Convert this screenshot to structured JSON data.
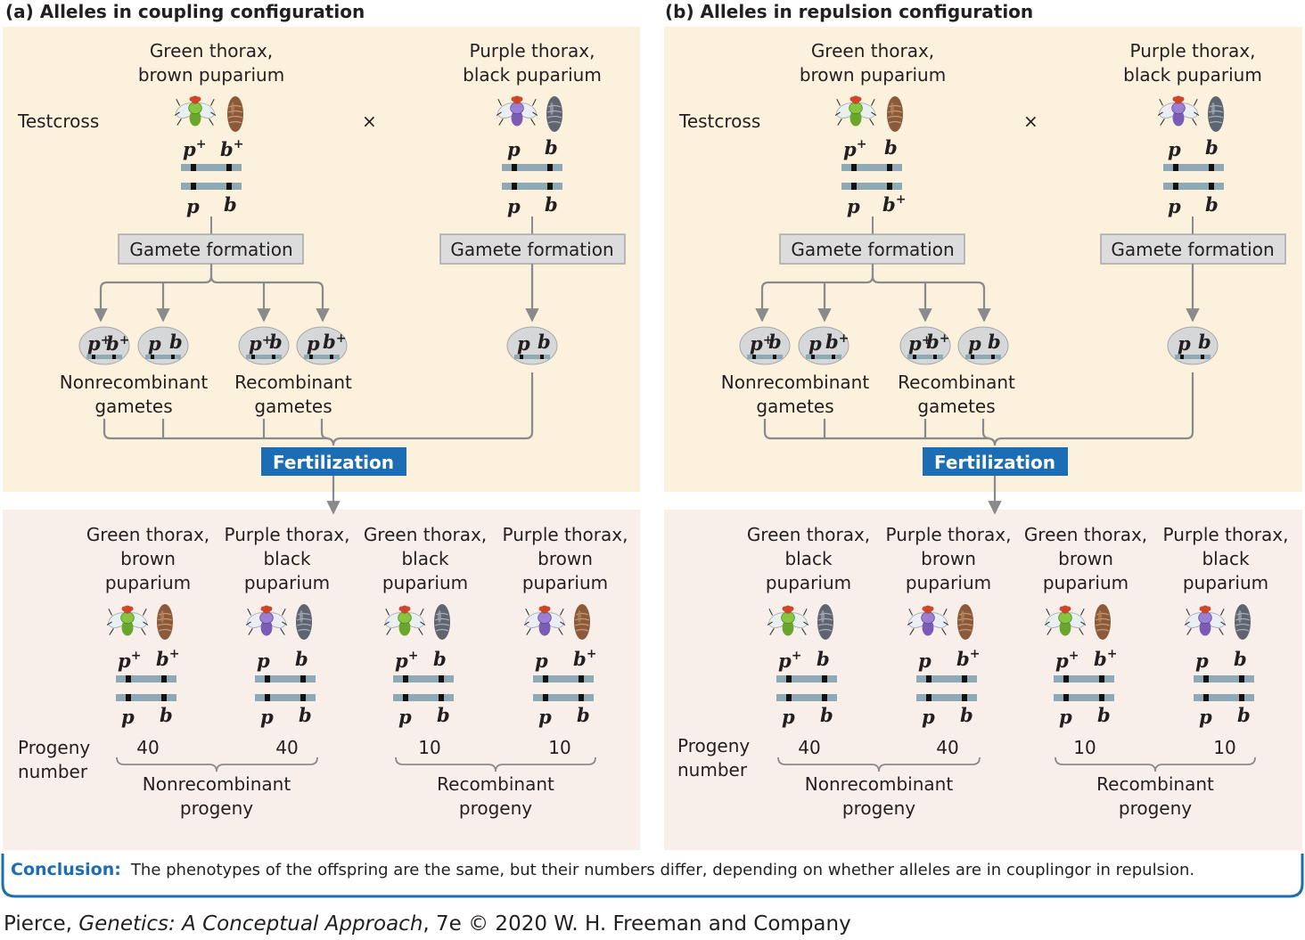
{
  "colors": {
    "top_panel": "#fbf1dc",
    "bottom_panel": "#f9efea",
    "fertilization": "#1c6db4",
    "gamete_box": "#dcdcdd",
    "chromosome": "#8fa9b5",
    "gamete_oval": "#d6d7d9",
    "green_fly_body": "#7dc23a",
    "purple_fly_body": "#8c6fc4",
    "brown_puparium": "#8a5a3a",
    "black_puparium": "#5e6470"
  },
  "panels": [
    {
      "title": "(a)  Alleles in coupling configuration",
      "testcross_label": "Testcross",
      "cross_symbol": "×",
      "parent1": {
        "line1": "Green thorax,",
        "line2": "brown puparium",
        "top_left": "p",
        "top_left_sup": "+",
        "top_right": "b",
        "top_right_sup": "+",
        "bot_left": "p",
        "bot_left_sup": "",
        "bot_right": "b",
        "bot_right_sup": ""
      },
      "parent2": {
        "line1": "Purple thorax,",
        "line2": "black puparium",
        "top_left": "p",
        "top_left_sup": "",
        "top_right": "b",
        "top_right_sup": "",
        "bot_left": "p",
        "bot_left_sup": "",
        "bot_right": "b",
        "bot_right_sup": ""
      },
      "gamete_formation": "Gamete formation",
      "gametes": [
        {
          "l": "p",
          "ls": "+",
          "r": "b",
          "rs": "+"
        },
        {
          "l": "p",
          "ls": "",
          "r": "b",
          "rs": ""
        },
        {
          "l": "p",
          "ls": "+",
          "r": "b",
          "rs": ""
        },
        {
          "l": "p",
          "ls": "",
          "r": "b",
          "rs": "+"
        }
      ],
      "parent2_gamete": {
        "l": "p",
        "ls": "",
        "r": "b",
        "rs": ""
      },
      "nonrecomb_gametes": [
        "Nonrecombinant",
        "gametes"
      ],
      "recomb_gametes": [
        "Recombinant",
        "gametes"
      ],
      "fertilization": "Fertilization",
      "progeny": [
        {
          "line1": "Green thorax,",
          "line2": "brown",
          "line3": "puparium",
          "count": "40",
          "tl": "p",
          "tls": "+",
          "tr": "b",
          "trs": "+",
          "bl": "p",
          "bls": "",
          "br": "b",
          "brs": ""
        },
        {
          "line1": "Purple thorax,",
          "line2": "black",
          "line3": "puparium",
          "count": "40",
          "tl": "p",
          "tls": "",
          "tr": "b",
          "trs": "",
          "bl": "p",
          "bls": "",
          "br": "b",
          "brs": ""
        },
        {
          "line1": "Green thorax,",
          "line2": "black",
          "line3": "puparium",
          "count": "10",
          "tl": "p",
          "tls": "+",
          "tr": "b",
          "trs": "",
          "bl": "p",
          "bls": "",
          "br": "b",
          "brs": ""
        },
        {
          "line1": "Purple thorax,",
          "line2": "brown",
          "line3": "puparium",
          "count": "10",
          "tl": "p",
          "tls": "",
          "tr": "b",
          "trs": "+",
          "bl": "p",
          "bls": "",
          "br": "b",
          "brs": ""
        }
      ],
      "progeny_number": [
        "Progeny",
        "number"
      ],
      "nonrecomb_progeny": [
        "Nonrecombinant",
        "progeny"
      ],
      "recomb_progeny": [
        "Recombinant",
        "progeny"
      ]
    },
    {
      "title": "(b)  Alleles in repulsion configuration",
      "testcross_label": "Testcross",
      "cross_symbol": "×",
      "parent1": {
        "line1": "Green thorax,",
        "line2": "brown puparium",
        "top_left": "p",
        "top_left_sup": "+",
        "top_right": "b",
        "top_right_sup": "",
        "bot_left": "p",
        "bot_left_sup": "",
        "bot_right": "b",
        "bot_right_sup": "+"
      },
      "parent2": {
        "line1": "Purple thorax,",
        "line2": "black puparium",
        "top_left": "p",
        "top_left_sup": "",
        "top_right": "b",
        "top_right_sup": "",
        "bot_left": "p",
        "bot_left_sup": "",
        "bot_right": "b",
        "bot_right_sup": ""
      },
      "gamete_formation": "Gamete formation",
      "gametes": [
        {
          "l": "p",
          "ls": "+",
          "r": "b",
          "rs": ""
        },
        {
          "l": "p",
          "ls": "",
          "r": "b",
          "rs": "+"
        },
        {
          "l": "p",
          "ls": "+",
          "r": "b",
          "rs": "+"
        },
        {
          "l": "p",
          "ls": "",
          "r": "b",
          "rs": ""
        }
      ],
      "parent2_gamete": {
        "l": "p",
        "ls": "",
        "r": "b",
        "rs": ""
      },
      "nonrecomb_gametes": [
        "Nonrecombinant",
        "gametes"
      ],
      "recomb_gametes": [
        "Recombinant",
        "gametes"
      ],
      "fertilization": "Fertilization",
      "progeny": [
        {
          "line1": "Green thorax,",
          "line2": "black",
          "line3": "puparium",
          "count": "40",
          "tl": "p",
          "tls": "+",
          "tr": "b",
          "trs": "",
          "bl": "p",
          "bls": "",
          "br": "b",
          "brs": ""
        },
        {
          "line1": "Purple thorax,",
          "line2": "brown",
          "line3": "puparium",
          "count": "40",
          "tl": "p",
          "tls": "",
          "tr": "b",
          "trs": "+",
          "bl": "p",
          "bls": "",
          "br": "b",
          "brs": ""
        },
        {
          "line1": "Green thorax,",
          "line2": "brown",
          "line3": "puparium",
          "count": "10",
          "tl": "p",
          "tls": "+",
          "tr": "b",
          "trs": "+",
          "bl": "p",
          "bls": "",
          "br": "b",
          "brs": ""
        },
        {
          "line1": "Purple thorax,",
          "line2": "black",
          "line3": "puparium",
          "count": "10",
          "tl": "p",
          "tls": "",
          "tr": "b",
          "trs": "",
          "bl": "p",
          "bls": "",
          "br": "b",
          "brs": ""
        }
      ],
      "progeny_number": [
        "Progeny",
        "number"
      ],
      "nonrecomb_progeny": [
        "Nonrecombinant",
        "progeny"
      ],
      "recomb_progeny": [
        "Recombinant",
        "progeny"
      ]
    }
  ],
  "conclusion": {
    "label": "Conclusion:",
    "text": "The phenotypes of the offspring are the same, but their numbers differ, depending on whether alleles are in couplingor in repulsion."
  },
  "credit": {
    "author": "Pierce, ",
    "book": "Genetics: A Conceptual Approach",
    "rest": ", 7e © 2020 W. H. Freeman and Company"
  }
}
